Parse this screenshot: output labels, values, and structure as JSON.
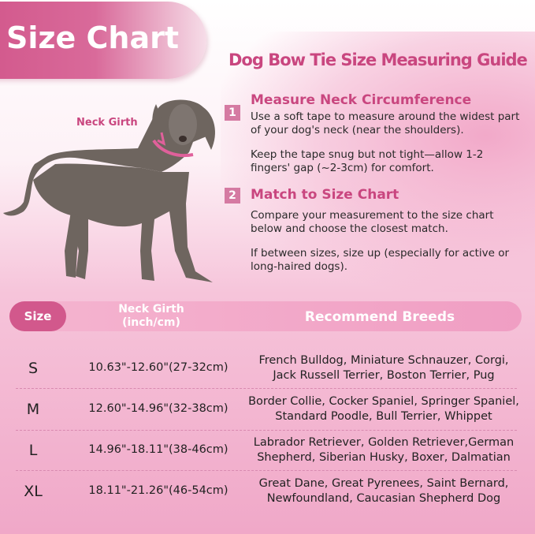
{
  "header": {
    "title": "Size Chart",
    "guide_title": "Dog Bow Tie Size Measuring Guide"
  },
  "image": {
    "neck_label": "Neck Girth"
  },
  "steps": [
    {
      "number": "1",
      "heading": "Measure Neck Circumference",
      "paragraphs": [
        "Use a soft tape to measure around the widest part of your dog's neck (near the shoulders).",
        "Keep the tape snug but not tight—allow 1-2 fingers' gap (~2-3cm) for comfort."
      ]
    },
    {
      "number": "2",
      "heading": "Match to Size Chart",
      "paragraphs": [
        "Compare your measurement to the size chart below and choose the closest match.",
        "If between sizes, size up (especially for active or long-haired dogs)."
      ]
    }
  ],
  "table": {
    "headers": {
      "size": "Size",
      "girth": "Neck Girth (inch/cm)",
      "breeds": "Recommend Breeds"
    },
    "rows": [
      {
        "size": "S",
        "girth": "10.63\"-12.60\"(27-32cm)",
        "breeds": "French Bulldog, Miniature Schnauzer, Corgi, Jack Russell Terrier, Boston Terrier, Pug"
      },
      {
        "size": "M",
        "girth": "12.60\"-14.96\"(32-38cm)",
        "breeds": "Border Collie, Cocker Spaniel, Springer Spaniel, Standard Poodle, Bull Terrier, Whippet"
      },
      {
        "size": "L",
        "girth": "14.96\"-18.11\"(38-46cm)",
        "breeds": "Labrador Retriever, Golden Retriever,German Shepherd, Siberian Husky, Boxer, Dalmatian"
      },
      {
        "size": "XL",
        "girth": "18.11\"-21.26\"(46-54cm)",
        "breeds": "Great Dane, Great Pyrenees, Saint Bernard, Newfoundland, Caucasian Shepherd Dog"
      }
    ]
  },
  "colors": {
    "accent": "#c9467f",
    "pill": "#d2588c",
    "background_pink": "#f0a8c8"
  }
}
